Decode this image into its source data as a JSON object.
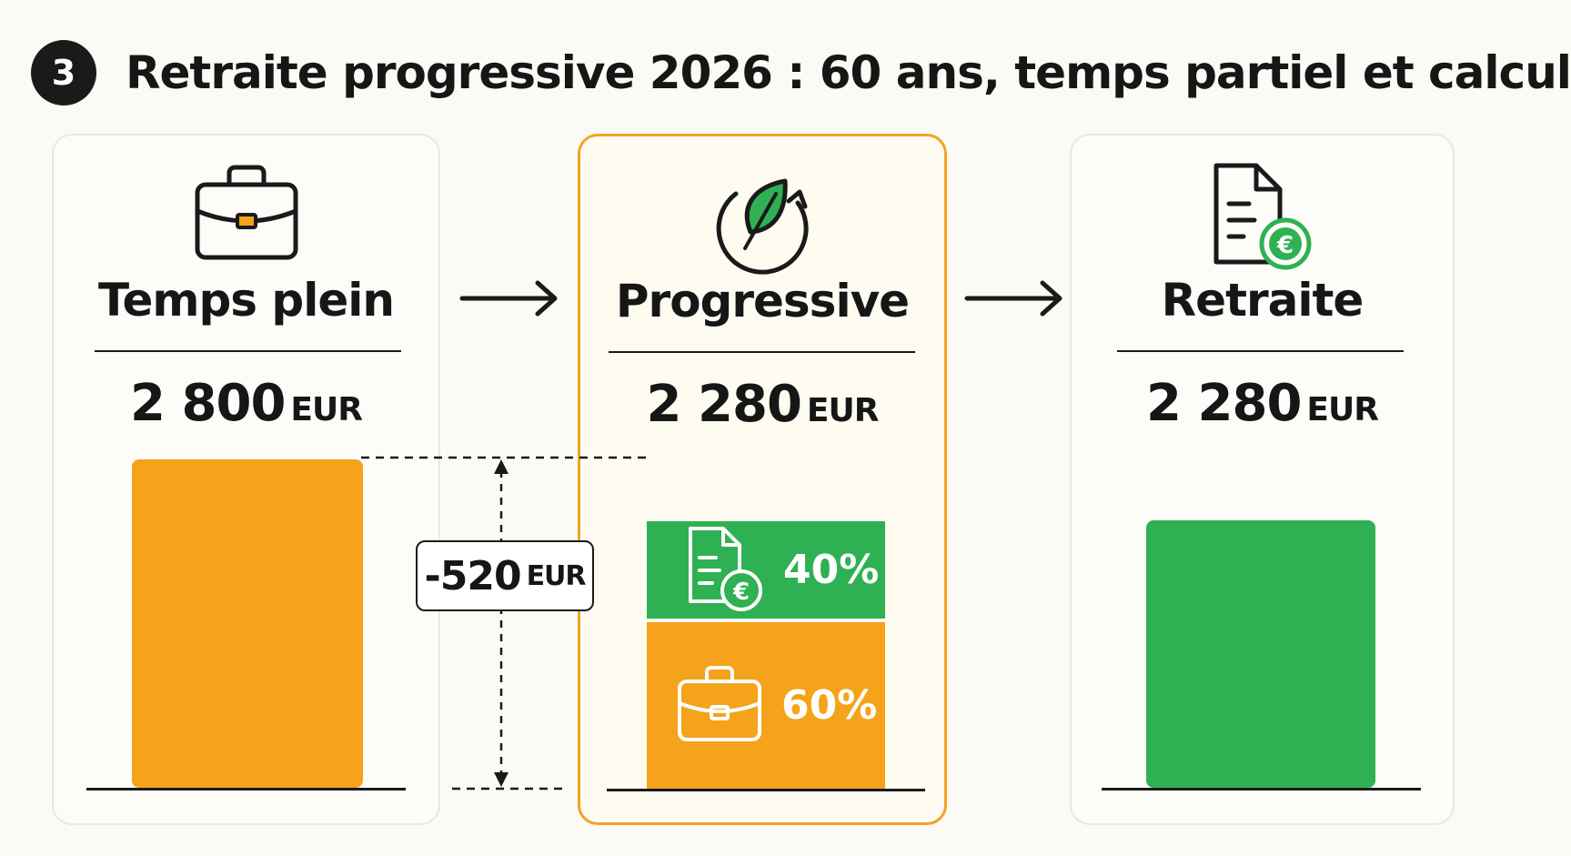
{
  "header": {
    "step": "3",
    "title": "Retraite progressive 2026 : 60 ans, temps partiel et calcul"
  },
  "colors": {
    "orange": "#f5a31a",
    "green": "#2fb153",
    "dark": "#1a1a1a"
  },
  "stages": [
    {
      "label": "Temps plein",
      "amount": "2 800",
      "unit": "EUR",
      "icon": "briefcase-icon",
      "value": 2800
    },
    {
      "label": "Progressive",
      "amount": "2 280",
      "unit": "EUR",
      "icon": "leaf-cycle-icon",
      "value": 2280,
      "segments": [
        {
          "percent": "40%",
          "icon": "pension-document-icon",
          "color": "green"
        },
        {
          "percent": "60%",
          "icon": "briefcase-icon",
          "color": "orange"
        }
      ]
    },
    {
      "label": "Retraite",
      "amount": "2 280",
      "unit": "EUR",
      "icon": "pension-document-icon",
      "value": 2280
    }
  ],
  "difference": {
    "amount": "-520",
    "unit": "EUR"
  }
}
